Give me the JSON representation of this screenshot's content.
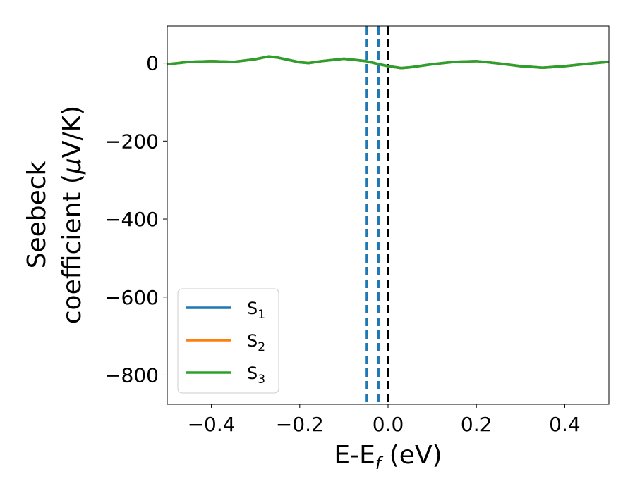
{
  "chart_data": {
    "type": "line",
    "xlabel": {
      "main": "E-E",
      "sub": "f",
      "tail": " (eV)"
    },
    "ylabel": {
      "line1": "Seebeck",
      "line2": "coefficient  (",
      "mu": "μ",
      "unit_tail": "V/K)"
    },
    "xlim": [
      -0.5,
      0.5
    ],
    "ylim": [
      -875,
      95
    ],
    "xticks": [
      -0.4,
      -0.2,
      0.0,
      0.2,
      0.4
    ],
    "xtick_labels": [
      "−0.4",
      "−0.2",
      "0.0",
      "0.2",
      "0.4"
    ],
    "yticks": [
      0,
      -200,
      -400,
      -600,
      -800
    ],
    "ytick_labels": [
      "0",
      "−200",
      "−400",
      "−600",
      "−800"
    ],
    "grid": false,
    "legend_position": "lower-left",
    "series": [
      {
        "name": {
          "base": "S",
          "sub": "1"
        },
        "color": "#1f77b4",
        "x": [
          -0.5,
          -0.45,
          -0.4,
          -0.35,
          -0.3,
          -0.27,
          -0.25,
          -0.2,
          -0.18,
          -0.15,
          -0.1,
          -0.05,
          -0.02,
          0.0,
          0.03,
          0.05,
          0.1,
          0.15,
          0.2,
          0.25,
          0.3,
          0.35,
          0.4,
          0.45,
          0.5
        ],
        "y": [
          -3,
          3,
          5,
          3,
          10,
          17,
          14,
          2,
          0,
          5,
          11,
          5,
          -3,
          -8,
          -13,
          -11,
          -3,
          3,
          5,
          -1,
          -8,
          -12,
          -8,
          -2,
          3
        ]
      },
      {
        "name": {
          "base": "S",
          "sub": "2"
        },
        "color": "#ff7f0e",
        "x": [
          -0.5,
          -0.45,
          -0.4,
          -0.35,
          -0.3,
          -0.27,
          -0.25,
          -0.2,
          -0.18,
          -0.15,
          -0.1,
          -0.05,
          -0.02,
          0.0,
          0.03,
          0.05,
          0.1,
          0.15,
          0.2,
          0.25,
          0.3,
          0.35,
          0.4,
          0.45,
          0.5
        ],
        "y": [
          -3,
          3,
          5,
          3,
          10,
          17,
          14,
          2,
          0,
          5,
          11,
          5,
          -3,
          -8,
          -13,
          -11,
          -3,
          3,
          5,
          -1,
          -8,
          -12,
          -8,
          -2,
          3
        ]
      },
      {
        "name": {
          "base": "S",
          "sub": "3"
        },
        "color": "#2ca02c",
        "x": [
          -0.5,
          -0.45,
          -0.4,
          -0.35,
          -0.3,
          -0.27,
          -0.25,
          -0.2,
          -0.18,
          -0.15,
          -0.1,
          -0.05,
          -0.02,
          0.0,
          0.03,
          0.05,
          0.1,
          0.15,
          0.2,
          0.25,
          0.3,
          0.35,
          0.4,
          0.45,
          0.5
        ],
        "y": [
          -3,
          3,
          5,
          3,
          10,
          17,
          14,
          2,
          0,
          5,
          11,
          5,
          -3,
          -8,
          -13,
          -11,
          -3,
          3,
          5,
          -1,
          -8,
          -12,
          -8,
          -2,
          3
        ]
      }
    ],
    "vlines": [
      {
        "x": -0.048,
        "color": "#1f77b4",
        "style": "dashed"
      },
      {
        "x": -0.022,
        "color": "#1f77b4",
        "style": "dashed"
      },
      {
        "x": 0.0,
        "color": "#000000",
        "style": "dashed"
      }
    ]
  }
}
